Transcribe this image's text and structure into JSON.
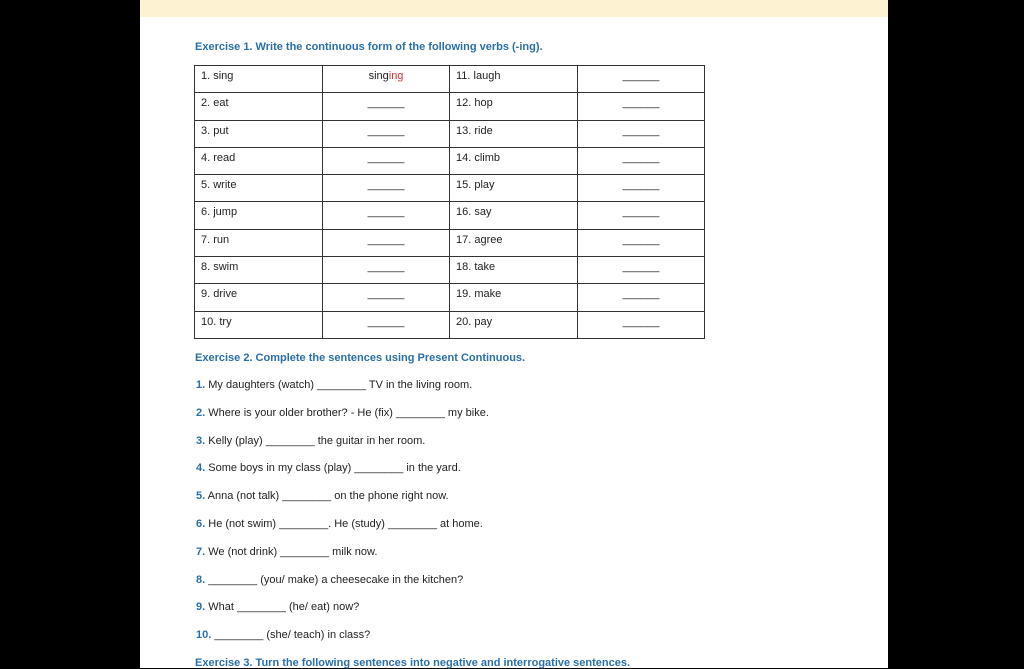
{
  "exercise1": {
    "title": "Exercise 1. Write the continuous form of the following verbs (-ing).",
    "rows": [
      {
        "left": "1. sing",
        "left_answer_base": "sing",
        "left_answer_suffix": "ing",
        "right": "11. laugh",
        "right_answer": "______"
      },
      {
        "left": "2. eat",
        "left_answer": "______",
        "right": "12. hop",
        "right_answer": "______"
      },
      {
        "left": "3. put",
        "left_answer": "______",
        "right": "13. ride",
        "right_answer": "______"
      },
      {
        "left": "4. read",
        "left_answer": "______",
        "right": "14. climb",
        "right_answer": "______"
      },
      {
        "left": "5. write",
        "left_answer": "______",
        "right": "15. play",
        "right_answer": "______"
      },
      {
        "left": "6. jump",
        "left_answer": "______",
        "right": "16. say",
        "right_answer": "______"
      },
      {
        "left": "7. run",
        "left_answer": "______",
        "right": "17. agree",
        "right_answer": "______"
      },
      {
        "left": "8. swim",
        "left_answer": "______",
        "right": "18. take",
        "right_answer": "______"
      },
      {
        "left": "9. drive",
        "left_answer": "______",
        "right": "19. make",
        "right_answer": "______"
      },
      {
        "left": "10. try",
        "left_answer": "______",
        "right": "20. pay",
        "right_answer": "______"
      }
    ]
  },
  "exercise2": {
    "title": "Exercise 2. Complete the sentences using Present Continuous.",
    "sentences": [
      {
        "num": "1.",
        "text": "My daughters (watch) ________ TV in the living room."
      },
      {
        "num": "2.",
        "text": "Where is your older brother? - He (fix) ________ my bike."
      },
      {
        "num": "3.",
        "text": "Kelly (play) ________ the guitar in her room."
      },
      {
        "num": "4.",
        "text": "Some boys in my class (play) ________ in the yard."
      },
      {
        "num": "5.",
        "text": "Anna (not talk) ________ on the phone right now."
      },
      {
        "num": "6.",
        "text": "He (not swim) ________. He (study) ________ at home."
      },
      {
        "num": "7.",
        "text": "We (not drink) ________ milk now."
      },
      {
        "num": "8.",
        "text": "________ (you/ make) a cheesecake in the kitchen?"
      },
      {
        "num": "9.",
        "text": "What ________ (he/ eat) now?"
      },
      {
        "num": "10.",
        "text": "________ (she/ teach) in class?"
      }
    ]
  },
  "exercise3": {
    "title": "Exercise 3. Turn the following sentences into negative and interrogative sentences."
  }
}
